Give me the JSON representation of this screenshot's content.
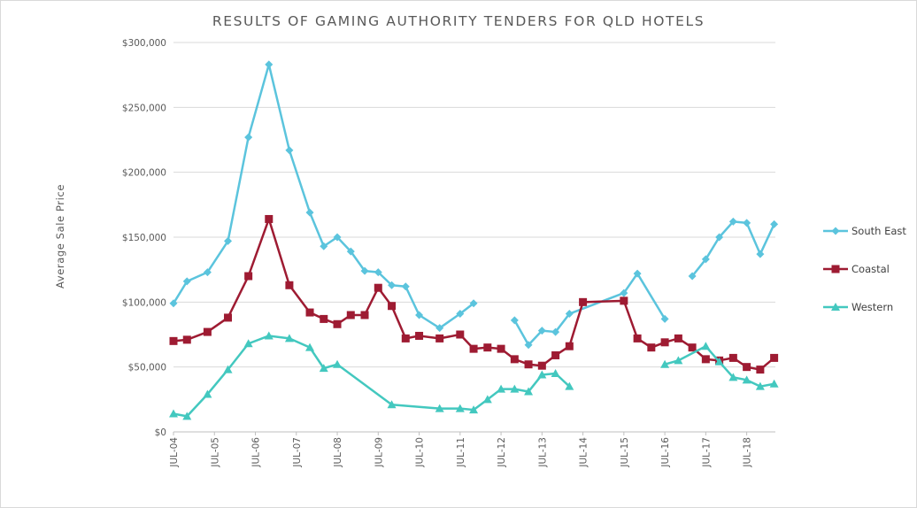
{
  "chart_data": {
    "type": "line",
    "title": "RESULTS OF GAMING AUTHORITY TENDERS FOR QLD HOTELS",
    "ylabel": "Average Sale Price",
    "xlabel": "",
    "ylim": [
      0,
      300000
    ],
    "y_ticks": [
      "$0",
      "$50,000",
      "$100,000",
      "$150,000",
      "$200,000",
      "$250,000",
      "$300,000"
    ],
    "x_ticks": [
      "JUL-04",
      "JUL-05",
      "JUL-06",
      "JUL-07",
      "JUL-08",
      "JUL-09",
      "JUL-10",
      "JUL-11",
      "JUL-12",
      "JUL-13",
      "JUL-14",
      "JUL-15",
      "JUL-16",
      "JUL-17",
      "JUL-18"
    ],
    "x_domain": [
      2004.5,
      2019.2
    ],
    "grid": true,
    "legend_position": "right",
    "series": [
      {
        "name": "South East",
        "color": "#5bc4dd",
        "marker": "diamond",
        "x": [
          2004.5,
          2004.83,
          2005.33,
          2005.83,
          2006.33,
          2006.83,
          2007.33,
          2007.83,
          2008.17,
          2008.5,
          2008.83,
          2009.17,
          2009.5,
          2009.83,
          2010.17,
          2010.5,
          2011.0,
          2011.5,
          2011.83,
          2012.5,
          2012.83,
          2013.17,
          2013.5,
          2013.83,
          2014.17,
          2015.5,
          2015.83,
          2016.5,
          2016.83,
          2017.17,
          2017.5,
          2017.83,
          2018.17,
          2018.5,
          2018.83,
          2019.17
        ],
        "values": [
          99000,
          116000,
          123000,
          147000,
          227000,
          283000,
          217000,
          169000,
          143000,
          150000,
          139000,
          124000,
          123000,
          113000,
          112000,
          90000,
          80000,
          91000,
          99000,
          null,
          86000,
          67000,
          78000,
          77000,
          91000,
          107000,
          122000,
          87000,
          null,
          120000,
          133000,
          150000,
          162000,
          161000,
          137000,
          160000
        ]
      },
      {
        "name": "Coastal",
        "color": "#9e1b32",
        "marker": "square",
        "x": [
          2004.5,
          2004.83,
          2005.33,
          2005.83,
          2006.33,
          2006.83,
          2007.33,
          2007.83,
          2008.17,
          2008.5,
          2008.83,
          2009.17,
          2009.5,
          2009.83,
          2010.17,
          2010.5,
          2011.0,
          2011.5,
          2011.83,
          2012.17,
          2012.5,
          2012.83,
          2013.17,
          2013.5,
          2013.83,
          2014.17,
          2014.5,
          2015.5,
          2015.83,
          2016.17,
          2016.5,
          2016.83,
          2017.17,
          2017.5,
          2017.83,
          2018.17,
          2018.5,
          2018.83,
          2019.17
        ],
        "values": [
          70000,
          71000,
          77000,
          88000,
          120000,
          164000,
          113000,
          92000,
          87000,
          83000,
          90000,
          90000,
          111000,
          97000,
          72000,
          74000,
          72000,
          75000,
          64000,
          65000,
          64000,
          56000,
          52000,
          51000,
          59000,
          66000,
          100000,
          101000,
          72000,
          65000,
          69000,
          72000,
          65000,
          56000,
          55000,
          57000,
          50000,
          48000,
          57000
        ]
      },
      {
        "name": "Western",
        "color": "#43c8bf",
        "marker": "triangle",
        "x": [
          2004.5,
          2004.83,
          2005.33,
          2005.83,
          2006.33,
          2006.83,
          2007.33,
          2007.83,
          2008.17,
          2008.5,
          2009.83,
          2011.0,
          2011.5,
          2011.83,
          2012.17,
          2012.5,
          2012.83,
          2013.17,
          2013.5,
          2013.83,
          2014.17,
          2014.5,
          2016.5,
          2016.83,
          2017.5,
          2017.83,
          2018.17,
          2018.5,
          2018.83,
          2019.17
        ],
        "values": [
          14000,
          12000,
          29000,
          48000,
          68000,
          74000,
          72000,
          65000,
          49000,
          52000,
          21000,
          18000,
          18000,
          17000,
          25000,
          33000,
          33000,
          31000,
          44000,
          45000,
          35000,
          null,
          52000,
          55000,
          66000,
          54000,
          42000,
          40000,
          35000,
          37000
        ]
      }
    ]
  }
}
